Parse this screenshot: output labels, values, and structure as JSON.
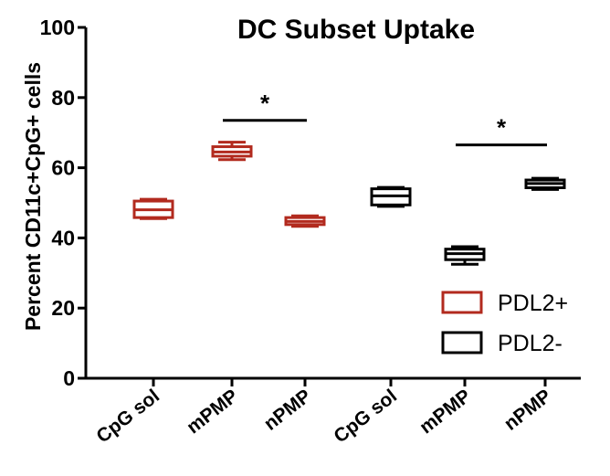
{
  "chart_data": {
    "type": "box",
    "title": "DC Subset Uptake",
    "xlabel": "",
    "ylabel": "Percent CD11c+CpG+ cells",
    "ylim": [
      0,
      100
    ],
    "yticks": [
      "0",
      "20",
      "40",
      "60",
      "80",
      "100"
    ],
    "grid": false,
    "legend_position": "bottom-right",
    "categories": [
      "CpG sol",
      "mPMP",
      "nPMP",
      "CpG sol",
      "mPMP",
      "nPMP"
    ],
    "series": [
      {
        "name": "PDL2+",
        "color": "#b22a1e",
        "boxes": [
          {
            "label": "CpG sol",
            "min": 45.5,
            "q1": 45.8,
            "median": 48,
            "q3": 50.5,
            "max": 51
          },
          {
            "label": "mPMP",
            "min": 62.3,
            "q1": 63.3,
            "median": 64.5,
            "q3": 66,
            "max": 67.3
          },
          {
            "label": "nPMP",
            "min": 43.3,
            "q1": 43.8,
            "median": 44.7,
            "q3": 45.8,
            "max": 46.3
          }
        ]
      },
      {
        "name": "PDL2-",
        "color": "#000000",
        "boxes": [
          {
            "label": "CpG sol",
            "min": 49,
            "q1": 49.4,
            "median": 52,
            "q3": 54,
            "max": 54.4
          },
          {
            "label": "mPMP",
            "min": 32.5,
            "q1": 33.8,
            "median": 35.5,
            "q3": 36.8,
            "max": 37.5
          },
          {
            "label": "nPMP",
            "min": 53.8,
            "q1": 54.3,
            "median": 55.5,
            "q3": 56.5,
            "max": 57
          }
        ]
      }
    ],
    "annotations": [
      {
        "text": "*",
        "from": "mPMP",
        "to": "nPMP",
        "group": "PDL2+",
        "y": 73.5
      },
      {
        "text": "*",
        "from": "mPMP",
        "to": "nPMP",
        "group": "PDL2-",
        "y": 66.5
      }
    ]
  }
}
